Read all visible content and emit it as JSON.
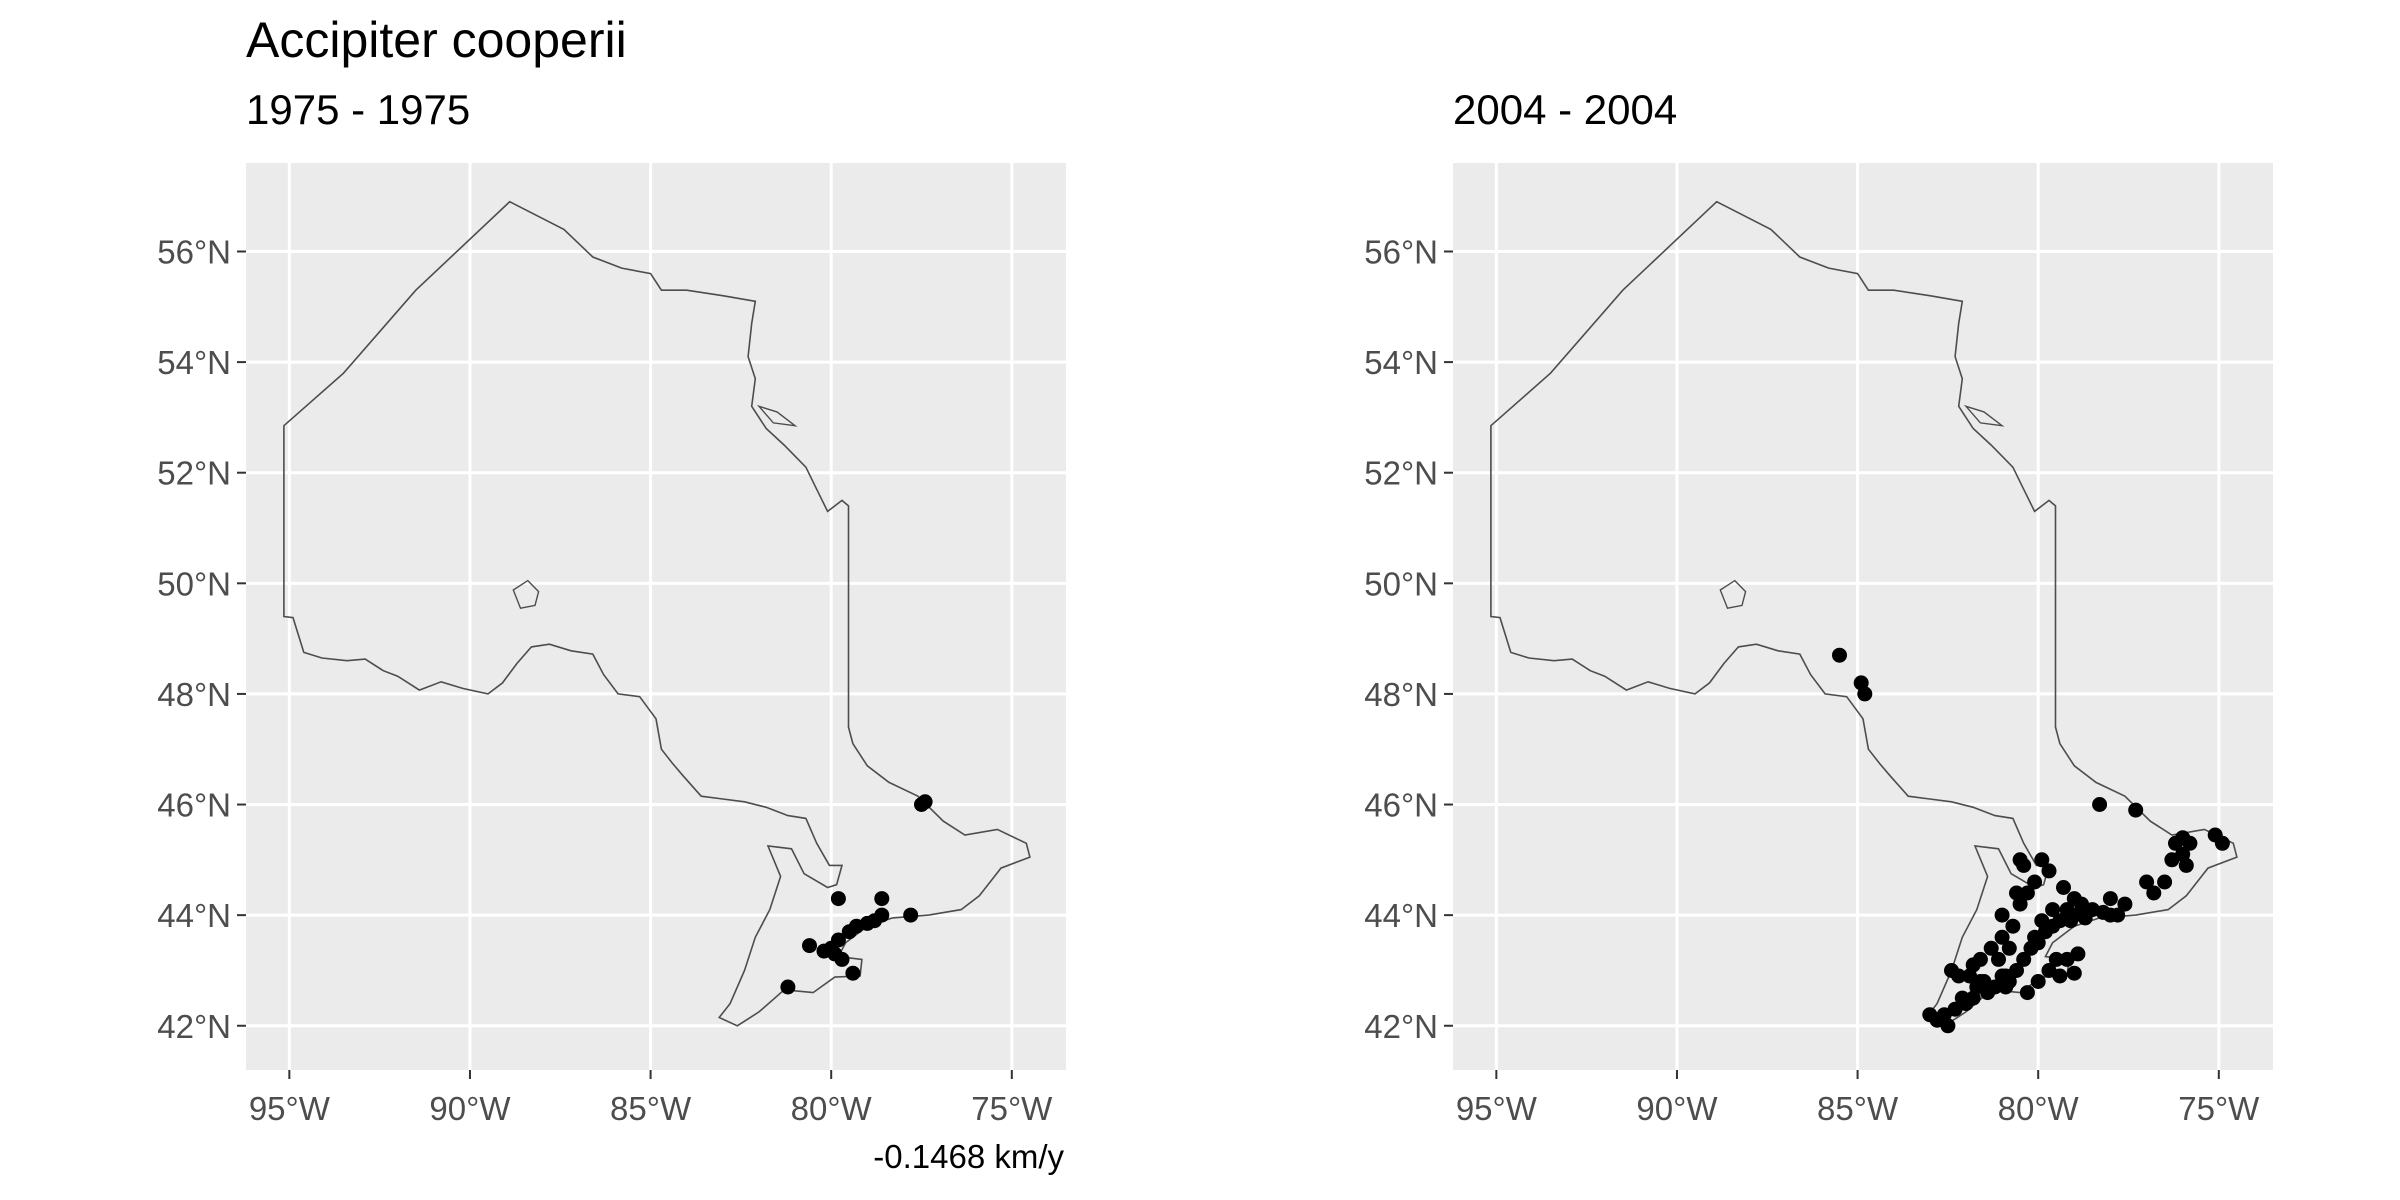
{
  "title": "Accipiter cooperii",
  "caption": "-0.1468 km/y",
  "colors": {
    "panel_bg": "#ebebeb",
    "grid": "#ffffff",
    "outline": "#4d4d4d",
    "point": "#000000",
    "tick_text": "#4d4d4d"
  },
  "axes": {
    "x_ticks": [
      {
        "value": -95,
        "label": "95°W"
      },
      {
        "value": -90,
        "label": "90°W"
      },
      {
        "value": -85,
        "label": "85°W"
      },
      {
        "value": -80,
        "label": "80°W"
      },
      {
        "value": -75,
        "label": "75°W"
      }
    ],
    "y_ticks": [
      {
        "value": 42,
        "label": "42°N"
      },
      {
        "value": 44,
        "label": "44°N"
      },
      {
        "value": 46,
        "label": "46°N"
      },
      {
        "value": 48,
        "label": "48°N"
      },
      {
        "value": 50,
        "label": "50°N"
      },
      {
        "value": 52,
        "label": "52°N"
      },
      {
        "value": 54,
        "label": "54°N"
      },
      {
        "value": 56,
        "label": "56°N"
      }
    ],
    "xlim": [
      -96.2,
      -73.5
    ],
    "ylim": [
      41.2,
      57.6
    ]
  },
  "outline": [
    [
      -95.15,
      52.85
    ],
    [
      -95.15,
      49.4
    ],
    [
      -94.9,
      49.38
    ],
    [
      -94.6,
      48.75
    ],
    [
      -94.1,
      48.65
    ],
    [
      -93.4,
      48.6
    ],
    [
      -92.9,
      48.63
    ],
    [
      -92.4,
      48.42
    ],
    [
      -92.0,
      48.32
    ],
    [
      -91.4,
      48.07
    ],
    [
      -90.8,
      48.22
    ],
    [
      -90.2,
      48.1
    ],
    [
      -89.5,
      48.0
    ],
    [
      -89.1,
      48.2
    ],
    [
      -88.7,
      48.55
    ],
    [
      -88.3,
      48.85
    ],
    [
      -87.8,
      48.9
    ],
    [
      -87.2,
      48.78
    ],
    [
      -86.6,
      48.72
    ],
    [
      -86.3,
      48.35
    ],
    [
      -85.9,
      48.0
    ],
    [
      -85.3,
      47.95
    ],
    [
      -84.85,
      47.55
    ],
    [
      -84.7,
      47.0
    ],
    [
      -84.4,
      46.75
    ],
    [
      -84.1,
      46.52
    ],
    [
      -83.6,
      46.15
    ],
    [
      -83.0,
      46.1
    ],
    [
      -82.4,
      46.05
    ],
    [
      -81.8,
      45.95
    ],
    [
      -81.2,
      45.8
    ],
    [
      -80.7,
      45.75
    ],
    [
      -80.4,
      45.3
    ],
    [
      -80.05,
      44.9
    ],
    [
      -79.7,
      44.9
    ],
    [
      -79.85,
      44.55
    ],
    [
      -80.1,
      44.5
    ],
    [
      -80.75,
      44.75
    ],
    [
      -81.1,
      45.2
    ],
    [
      -81.75,
      45.25
    ],
    [
      -81.4,
      44.7
    ],
    [
      -81.7,
      44.1
    ],
    [
      -82.1,
      43.6
    ],
    [
      -82.4,
      43.0
    ],
    [
      -82.8,
      42.4
    ],
    [
      -83.1,
      42.15
    ],
    [
      -82.6,
      42.0
    ],
    [
      -82.0,
      42.25
    ],
    [
      -81.3,
      42.65
    ],
    [
      -80.5,
      42.6
    ],
    [
      -79.9,
      42.88
    ],
    [
      -79.2,
      42.9
    ],
    [
      -79.15,
      43.2
    ],
    [
      -79.8,
      43.25
    ],
    [
      -79.6,
      43.5
    ],
    [
      -79.0,
      43.8
    ],
    [
      -78.3,
      43.95
    ],
    [
      -77.3,
      44.0
    ],
    [
      -76.4,
      44.1
    ],
    [
      -75.9,
      44.35
    ],
    [
      -75.3,
      44.85
    ],
    [
      -74.5,
      45.05
    ],
    [
      -74.6,
      45.3
    ],
    [
      -75.4,
      45.55
    ],
    [
      -76.3,
      45.45
    ],
    [
      -76.9,
      45.7
    ],
    [
      -77.6,
      46.15
    ],
    [
      -78.4,
      46.4
    ],
    [
      -79.0,
      46.7
    ],
    [
      -79.4,
      47.1
    ],
    [
      -79.52,
      47.4
    ],
    [
      -79.52,
      51.4
    ],
    [
      -79.7,
      51.5
    ],
    [
      -80.1,
      51.3
    ],
    [
      -80.4,
      51.7
    ],
    [
      -80.7,
      52.1
    ],
    [
      -81.3,
      52.5
    ],
    [
      -81.8,
      52.8
    ],
    [
      -82.2,
      53.2
    ],
    [
      -82.1,
      53.7
    ],
    [
      -82.3,
      54.1
    ],
    [
      -82.2,
      54.7
    ],
    [
      -82.1,
      55.1
    ],
    [
      -83.0,
      55.2
    ],
    [
      -84.0,
      55.3
    ],
    [
      -84.7,
      55.3
    ],
    [
      -85.0,
      55.6
    ],
    [
      -85.8,
      55.7
    ],
    [
      -86.6,
      55.9
    ],
    [
      -87.4,
      56.4
    ],
    [
      -88.0,
      56.6
    ],
    [
      -88.9,
      56.9
    ],
    [
      -91.5,
      55.3
    ],
    [
      -93.5,
      53.8
    ],
    [
      -95.15,
      52.85
    ]
  ],
  "lake_nipigon": [
    [
      -88.8,
      49.88
    ],
    [
      -88.4,
      50.05
    ],
    [
      -88.1,
      49.85
    ],
    [
      -88.2,
      49.6
    ],
    [
      -88.6,
      49.55
    ],
    [
      -88.8,
      49.88
    ]
  ],
  "akimiski_island": [
    [
      -82.0,
      53.2
    ],
    [
      -81.5,
      53.1
    ],
    [
      -81.0,
      52.85
    ],
    [
      -81.6,
      52.9
    ],
    [
      -82.0,
      53.2
    ]
  ],
  "panels": [
    {
      "subtitle": "1975 - 1975",
      "points": [
        [
          -77.5,
          46.0
        ],
        [
          -77.4,
          46.05
        ],
        [
          -79.8,
          44.3
        ],
        [
          -78.6,
          44.3
        ],
        [
          -78.6,
          44.0
        ],
        [
          -78.8,
          43.9
        ],
        [
          -79.0,
          43.85
        ],
        [
          -79.3,
          43.8
        ],
        [
          -79.5,
          43.7
        ],
        [
          -77.8,
          44.0
        ],
        [
          -79.8,
          43.55
        ],
        [
          -80.0,
          43.4
        ],
        [
          -79.9,
          43.3
        ],
        [
          -79.7,
          43.2
        ],
        [
          -80.2,
          43.35
        ],
        [
          -80.6,
          43.45
        ],
        [
          -79.4,
          42.95
        ],
        [
          -81.2,
          42.7
        ]
      ]
    },
    {
      "subtitle": "2004 - 2004",
      "points": [
        [
          -85.5,
          48.7
        ],
        [
          -84.9,
          48.2
        ],
        [
          -84.8,
          48.0
        ],
        [
          -78.3,
          46.0
        ],
        [
          -77.3,
          45.9
        ],
        [
          -75.1,
          45.45
        ],
        [
          -74.9,
          45.3
        ],
        [
          -76.0,
          45.4
        ],
        [
          -76.2,
          45.3
        ],
        [
          -75.8,
          45.3
        ],
        [
          -76.0,
          45.1
        ],
        [
          -76.3,
          45.0
        ],
        [
          -75.9,
          44.9
        ],
        [
          -76.5,
          44.6
        ],
        [
          -76.8,
          44.4
        ],
        [
          -77.0,
          44.6
        ],
        [
          -77.6,
          44.2
        ],
        [
          -77.8,
          44.0
        ],
        [
          -78.0,
          44.3
        ],
        [
          -78.5,
          44.1
        ],
        [
          -78.8,
          44.2
        ],
        [
          -79.0,
          44.0
        ],
        [
          -79.2,
          44.1
        ],
        [
          -79.4,
          43.9
        ],
        [
          -79.6,
          43.8
        ],
        [
          -79.8,
          43.7
        ],
        [
          -80.0,
          43.5
        ],
        [
          -80.2,
          43.4
        ],
        [
          -80.4,
          43.2
        ],
        [
          -80.6,
          43.0
        ],
        [
          -80.8,
          42.8
        ],
        [
          -81.0,
          42.9
        ],
        [
          -81.2,
          42.7
        ],
        [
          -81.4,
          42.6
        ],
        [
          -81.6,
          42.8
        ],
        [
          -81.8,
          42.5
        ],
        [
          -82.0,
          42.4
        ],
        [
          -82.3,
          42.3
        ],
        [
          -82.6,
          42.2
        ],
        [
          -82.8,
          42.1
        ],
        [
          -82.5,
          42.0
        ],
        [
          -83.0,
          42.2
        ],
        [
          -82.1,
          42.5
        ],
        [
          -81.9,
          42.9
        ],
        [
          -81.6,
          43.2
        ],
        [
          -81.3,
          43.4
        ],
        [
          -81.0,
          43.6
        ],
        [
          -80.7,
          43.8
        ],
        [
          -80.5,
          44.2
        ],
        [
          -80.3,
          44.4
        ],
        [
          -80.1,
          44.6
        ],
        [
          -80.4,
          44.9
        ],
        [
          -79.9,
          45.0
        ],
        [
          -80.5,
          45.0
        ],
        [
          -79.7,
          44.8
        ],
        [
          -79.3,
          44.5
        ],
        [
          -79.0,
          44.3
        ],
        [
          -79.5,
          43.2
        ],
        [
          -79.7,
          43.0
        ],
        [
          -79.4,
          42.9
        ],
        [
          -80.0,
          42.8
        ],
        [
          -80.3,
          42.6
        ],
        [
          -80.9,
          42.7
        ],
        [
          -81.5,
          42.8
        ],
        [
          -82.2,
          42.9
        ],
        [
          -81.8,
          43.1
        ],
        [
          -81.1,
          43.2
        ],
        [
          -80.8,
          43.4
        ],
        [
          -80.1,
          43.6
        ],
        [
          -79.9,
          43.9
        ],
        [
          -79.6,
          44.1
        ],
        [
          -79.1,
          43.9
        ],
        [
          -78.7,
          43.95
        ],
        [
          -78.2,
          44.05
        ],
        [
          -78.0,
          44.0
        ],
        [
          -78.9,
          43.3
        ],
        [
          -79.2,
          43.2
        ],
        [
          -79.0,
          42.95
        ],
        [
          -80.6,
          44.4
        ],
        [
          -81.0,
          44.0
        ],
        [
          -80.9,
          42.9
        ],
        [
          -81.7,
          42.7
        ],
        [
          -82.4,
          43.0
        ]
      ]
    }
  ]
}
